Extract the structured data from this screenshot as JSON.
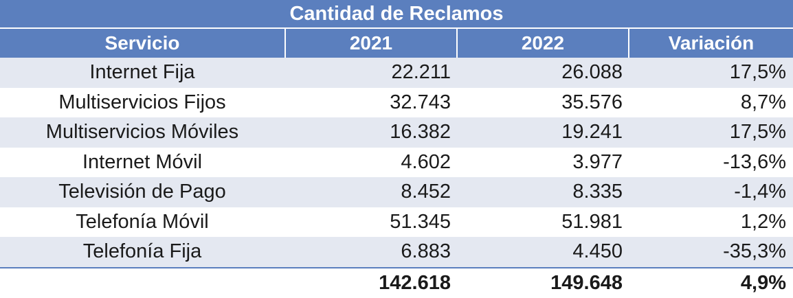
{
  "chart_data": {
    "type": "table",
    "title": "Cantidad de Reclamos",
    "columns": [
      "Servicio",
      "2021",
      "2022",
      "Variación"
    ],
    "rows": [
      [
        "Internet Fija",
        "22.211",
        "26.088",
        "17,5%"
      ],
      [
        "Multiservicios Fijos",
        "32.743",
        "35.576",
        "8,7%"
      ],
      [
        "Multiservicios Móviles",
        "16.382",
        "19.241",
        "17,5%"
      ],
      [
        "Internet Móvil",
        "4.602",
        "3.977",
        "-13,6%"
      ],
      [
        "Televisión de Pago",
        "8.452",
        "8.335",
        "-1,4%"
      ],
      [
        "Telefonía Móvil",
        "51.345",
        "51.981",
        "1,2%"
      ],
      [
        "Telefonía Fija",
        "6.883",
        "4.450",
        "-35,3%"
      ]
    ],
    "total": [
      "",
      "142.618",
      "149.648",
      "4,9%"
    ]
  },
  "colors": {
    "header_bg": "#5b7fbe",
    "header_text": "#ffffff",
    "band_bg": "#e4e8f1"
  }
}
